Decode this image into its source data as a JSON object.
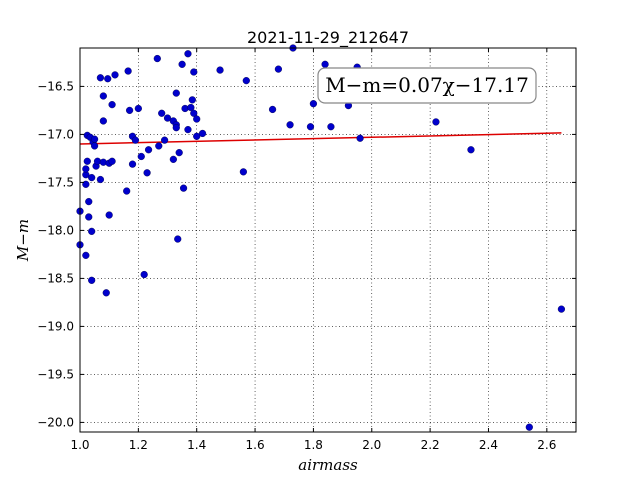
{
  "chart_data": {
    "type": "scatter",
    "title": "2021-11-29_212647",
    "xlabel": "airmass",
    "ylabel": "M−m",
    "annotation": "M−m=0.07χ−17.17",
    "xlim": [
      1.0,
      2.7
    ],
    "ylim": [
      -20.1,
      -16.1
    ],
    "xticks": [
      1.0,
      1.2,
      1.4,
      1.6,
      1.8,
      2.0,
      2.2,
      2.4,
      2.6
    ],
    "xtick_labels": [
      "1.0",
      "1.2",
      "1.4",
      "1.6",
      "1.8",
      "2.0",
      "2.2",
      "2.4",
      "2.6"
    ],
    "yticks": [
      -16.5,
      -17.0,
      -17.5,
      -18.0,
      -18.5,
      -19.0,
      -19.5,
      -20.0
    ],
    "ytick_labels": [
      "−16.5",
      "−17.0",
      "−17.5",
      "−18.0",
      "−18.5",
      "−19.0",
      "−19.5",
      "−20.0"
    ],
    "grid": true,
    "point_color": "#0000cc",
    "fit_color": "#dd0000",
    "fit": {
      "slope": 0.07,
      "intercept": -17.17,
      "x_range": [
        1.0,
        2.65
      ]
    },
    "points": [
      {
        "x": 1.0,
        "y": -17.8
      },
      {
        "x": 1.0,
        "y": -18.15
      },
      {
        "x": 1.02,
        "y": -18.26
      },
      {
        "x": 1.02,
        "y": -17.42
      },
      {
        "x": 1.02,
        "y": -17.52
      },
      {
        "x": 1.02,
        "y": -17.36
      },
      {
        "x": 1.025,
        "y": -17.28
      },
      {
        "x": 1.025,
        "y": -17.01
      },
      {
        "x": 1.03,
        "y": -17.7
      },
      {
        "x": 1.03,
        "y": -17.86
      },
      {
        "x": 1.035,
        "y": -17.03
      },
      {
        "x": 1.04,
        "y": -17.45
      },
      {
        "x": 1.04,
        "y": -18.01
      },
      {
        "x": 1.04,
        "y": -18.52
      },
      {
        "x": 1.045,
        "y": -17.08
      },
      {
        "x": 1.05,
        "y": -17.12
      },
      {
        "x": 1.05,
        "y": -17.05
      },
      {
        "x": 1.055,
        "y": -17.33
      },
      {
        "x": 1.06,
        "y": -17.28
      },
      {
        "x": 1.07,
        "y": -17.47
      },
      {
        "x": 1.07,
        "y": -16.41
      },
      {
        "x": 1.08,
        "y": -17.29
      },
      {
        "x": 1.08,
        "y": -16.6
      },
      {
        "x": 1.08,
        "y": -16.86
      },
      {
        "x": 1.09,
        "y": -18.65
      },
      {
        "x": 1.095,
        "y": -16.42
      },
      {
        "x": 1.1,
        "y": -17.3
      },
      {
        "x": 1.1,
        "y": -17.84
      },
      {
        "x": 1.11,
        "y": -16.69
      },
      {
        "x": 1.11,
        "y": -17.28
      },
      {
        "x": 1.12,
        "y": -16.38
      },
      {
        "x": 1.16,
        "y": -17.59
      },
      {
        "x": 1.165,
        "y": -16.34
      },
      {
        "x": 1.17,
        "y": -16.75
      },
      {
        "x": 1.18,
        "y": -17.02
      },
      {
        "x": 1.18,
        "y": -17.31
      },
      {
        "x": 1.19,
        "y": -17.06
      },
      {
        "x": 1.2,
        "y": -16.73
      },
      {
        "x": 1.21,
        "y": -17.23
      },
      {
        "x": 1.22,
        "y": -18.46
      },
      {
        "x": 1.23,
        "y": -17.4
      },
      {
        "x": 1.235,
        "y": -17.16
      },
      {
        "x": 1.265,
        "y": -16.21
      },
      {
        "x": 1.27,
        "y": -17.12
      },
      {
        "x": 1.28,
        "y": -16.78
      },
      {
        "x": 1.29,
        "y": -17.06
      },
      {
        "x": 1.3,
        "y": -16.83
      },
      {
        "x": 1.32,
        "y": -17.26
      },
      {
        "x": 1.32,
        "y": -16.86
      },
      {
        "x": 1.33,
        "y": -16.57
      },
      {
        "x": 1.33,
        "y": -16.9
      },
      {
        "x": 1.33,
        "y": -16.93
      },
      {
        "x": 1.335,
        "y": -18.09
      },
      {
        "x": 1.34,
        "y": -17.19
      },
      {
        "x": 1.35,
        "y": -16.27
      },
      {
        "x": 1.355,
        "y": -17.56
      },
      {
        "x": 1.36,
        "y": -16.73
      },
      {
        "x": 1.37,
        "y": -16.16
      },
      {
        "x": 1.37,
        "y": -16.95
      },
      {
        "x": 1.38,
        "y": -16.72
      },
      {
        "x": 1.385,
        "y": -16.64
      },
      {
        "x": 1.39,
        "y": -16.35
      },
      {
        "x": 1.39,
        "y": -16.78
      },
      {
        "x": 1.4,
        "y": -17.02
      },
      {
        "x": 1.4,
        "y": -16.84
      },
      {
        "x": 1.42,
        "y": -16.99
      },
      {
        "x": 1.48,
        "y": -16.33
      },
      {
        "x": 1.56,
        "y": -17.39
      },
      {
        "x": 1.57,
        "y": -16.44
      },
      {
        "x": 1.66,
        "y": -16.74
      },
      {
        "x": 1.68,
        "y": -16.32
      },
      {
        "x": 1.72,
        "y": -16.9
      },
      {
        "x": 1.73,
        "y": -16.1
      },
      {
        "x": 1.79,
        "y": -16.92
      },
      {
        "x": 1.8,
        "y": -16.68
      },
      {
        "x": 1.84,
        "y": -16.27
      },
      {
        "x": 1.86,
        "y": -16.92
      },
      {
        "x": 1.92,
        "y": -16.7
      },
      {
        "x": 1.95,
        "y": -16.3
      },
      {
        "x": 1.96,
        "y": -17.04
      },
      {
        "x": 2.22,
        "y": -16.87
      },
      {
        "x": 2.34,
        "y": -17.16
      },
      {
        "x": 2.54,
        "y": -20.05
      },
      {
        "x": 2.65,
        "y": -18.82
      }
    ]
  }
}
